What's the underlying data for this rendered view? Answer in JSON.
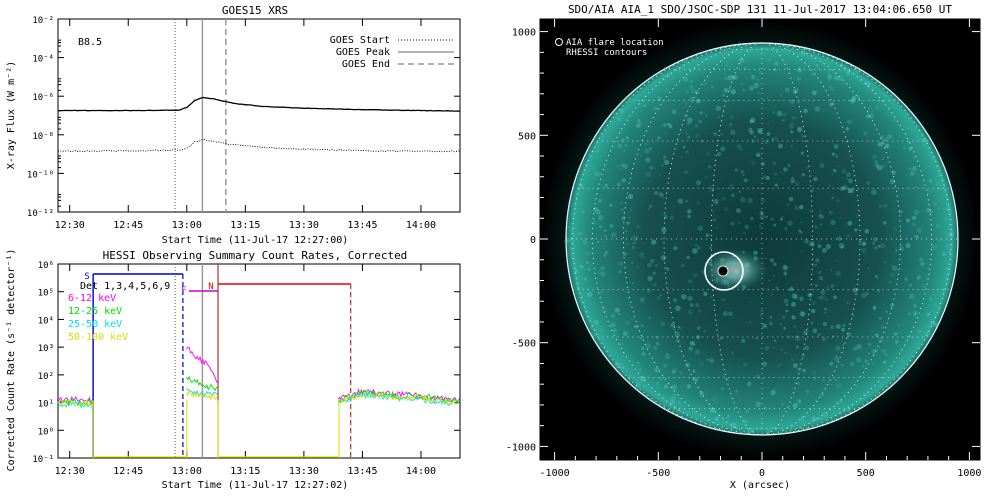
{
  "panels": {
    "goes": {
      "title": "GOES15 XRS",
      "ylabel": "X-ray Flux (W m⁻²)",
      "xlabel": "Start Time (11-Jul-17 12:27:00)",
      "class_label": "B8.5",
      "x_ticks": [
        "12:30",
        "12:45",
        "13:00",
        "13:15",
        "13:30",
        "13:45",
        "14:00"
      ],
      "y_ticks": [
        "10⁻²",
        "10⁻⁴",
        "10⁻⁶",
        "10⁻⁸",
        "10⁻¹⁰",
        "10⁻¹²"
      ],
      "legend": [
        "GOES Start",
        "GOES Peak",
        "GOES End"
      ]
    },
    "hessi": {
      "title": "HESSI Observing Summary Count Rates, Corrected",
      "ylabel": "Corrected Count Rate (s⁻¹ detector⁻¹)",
      "xlabel": "Start Time (11-Jul-17 12:27:02)",
      "x_ticks": [
        "12:30",
        "12:45",
        "13:00",
        "13:15",
        "13:30",
        "13:45",
        "14:00"
      ],
      "y_ticks": [
        "10⁶",
        "10⁵",
        "10⁴",
        "10³",
        "10²",
        "10¹",
        "10⁰",
        "10⁻¹"
      ],
      "det_label": "Det 1,3,4,5,6,9",
      "bands": [
        {
          "label": "6-12 keV",
          "color": "#ff00ff"
        },
        {
          "label": "12-25 keV",
          "color": "#00dd00"
        },
        {
          "label": "25-50 keV",
          "color": "#00ddff"
        },
        {
          "label": "50-100 keV",
          "color": "#dddd00"
        }
      ],
      "flag_labels": [
        "S",
        "F",
        "N"
      ]
    },
    "aia": {
      "title": "SDO/AIA AIA_1 SDO/JSOC-SDP 131 11-Jul-2017 13:04:06.650 UT",
      "legend_line1": "AIA flare location",
      "legend_line2": "RHESSI contours",
      "xlabel": "X (arcsec)",
      "x_ticks": [
        "-1000",
        "-500",
        "0",
        "500",
        "1000"
      ],
      "y_ticks": [
        "1000",
        "500",
        "0",
        "-500",
        "-1000"
      ],
      "flare_color": "#ffffff",
      "disk_color": "#2aa89a"
    }
  },
  "chart_data": [
    {
      "type": "line",
      "title": "GOES15 XRS",
      "xlabel": "Start Time (11-Jul-17 12:27:00)",
      "ylabel": "X-ray Flux (W m⁻²)",
      "x_range_minutes_after_1227": [
        0,
        103
      ],
      "yscale": "log",
      "ylim": [
        1e-12,
        0.01
      ],
      "events": {
        "start": "12:57",
        "peak": "13:04",
        "end": "13:10"
      },
      "series": [
        {
          "name": "",
          "style": "solid",
          "x": [
            "12:27",
            "12:45",
            "12:58",
            "13:00",
            "13:02",
            "13:04",
            "13:07",
            "13:12",
            "13:20",
            "13:30",
            "13:45",
            "14:00",
            "14:10"
          ],
          "values": [
            1.8e-07,
            1.8e-07,
            1.9e-07,
            2.6e-07,
            6e-07,
            8.5e-07,
            7.2e-07,
            4.2e-07,
            2.9e-07,
            2.4e-07,
            2e-07,
            1.8e-07,
            1.7e-07
          ]
        },
        {
          "name": "",
          "style": "dotted",
          "x": [
            "12:27",
            "12:45",
            "12:58",
            "13:00",
            "13:02",
            "13:04",
            "13:07",
            "13:12",
            "13:20",
            "13:30",
            "13:45",
            "14:00",
            "14:10"
          ],
          "values": [
            1.4e-09,
            1.5e-09,
            1.6e-09,
            2e-09,
            4.2e-09,
            5.6e-09,
            4.6e-09,
            3e-09,
            2.2e-09,
            1.8e-09,
            1.5e-09,
            1.4e-09,
            1.4e-09
          ]
        }
      ]
    },
    {
      "type": "line",
      "title": "HESSI Observing Summary Count Rates, Corrected",
      "xlabel": "Start Time (11-Jul-17 12:27:02)",
      "ylabel": "Corrected Count Rate (s⁻¹ detector⁻¹)",
      "yscale": "log",
      "ylim": [
        0.1,
        1000000.0
      ],
      "events": {
        "saa_start": "12:36",
        "saa_end": "12:59",
        "flare_a": "13:00",
        "flare_b": "13:08",
        "night_start": "13:39",
        "night_end": "13:42"
      },
      "series": [
        {
          "name": "6-12 keV",
          "x": [
            "12:27",
            "12:33",
            "12:36",
            "13:00",
            "13:01",
            "13:03",
            "13:06",
            "13:08",
            "13:39",
            "13:41",
            "13:45",
            "13:50",
            "14:00",
            "14:10"
          ],
          "values": [
            12,
            14,
            12,
            1000,
            700,
            400,
            200,
            50,
            13,
            18,
            25,
            22,
            17,
            12
          ]
        },
        {
          "name": "12-25 keV",
          "x": [
            "12:27",
            "12:36",
            "13:00",
            "13:02",
            "13:05",
            "13:08",
            "13:39",
            "13:45",
            "14:00",
            "14:10"
          ],
          "values": [
            11,
            10,
            80,
            55,
            40,
            30,
            12,
            22,
            16,
            11
          ]
        },
        {
          "name": "25-50 keV",
          "x": [
            "12:27",
            "12:36",
            "13:00",
            "13:03",
            "13:08",
            "13:39",
            "13:45",
            "14:00",
            "14:10"
          ],
          "values": [
            9,
            8,
            25,
            22,
            18,
            10,
            19,
            13,
            9
          ]
        },
        {
          "name": "50-100 keV",
          "x": [
            "12:27",
            "12:36",
            "13:00",
            "13:03",
            "13:08",
            "13:39",
            "13:45",
            "14:00",
            "14:10"
          ],
          "values": [
            10,
            9,
            22,
            20,
            16,
            11,
            20,
            14,
            10
          ]
        }
      ]
    },
    {
      "type": "image",
      "title": "SDO/AIA AIA_1 SDO/JSOC-SDP 131 11-Jul-2017 13:04:06.650 UT",
      "xlabel": "X (arcsec)",
      "xlim": [
        -1100,
        1100
      ],
      "ylim": [
        -1100,
        1100
      ],
      "flare_location_arcsec": [
        -180,
        -150
      ],
      "disk_radius_arcsec": 945
    }
  ]
}
